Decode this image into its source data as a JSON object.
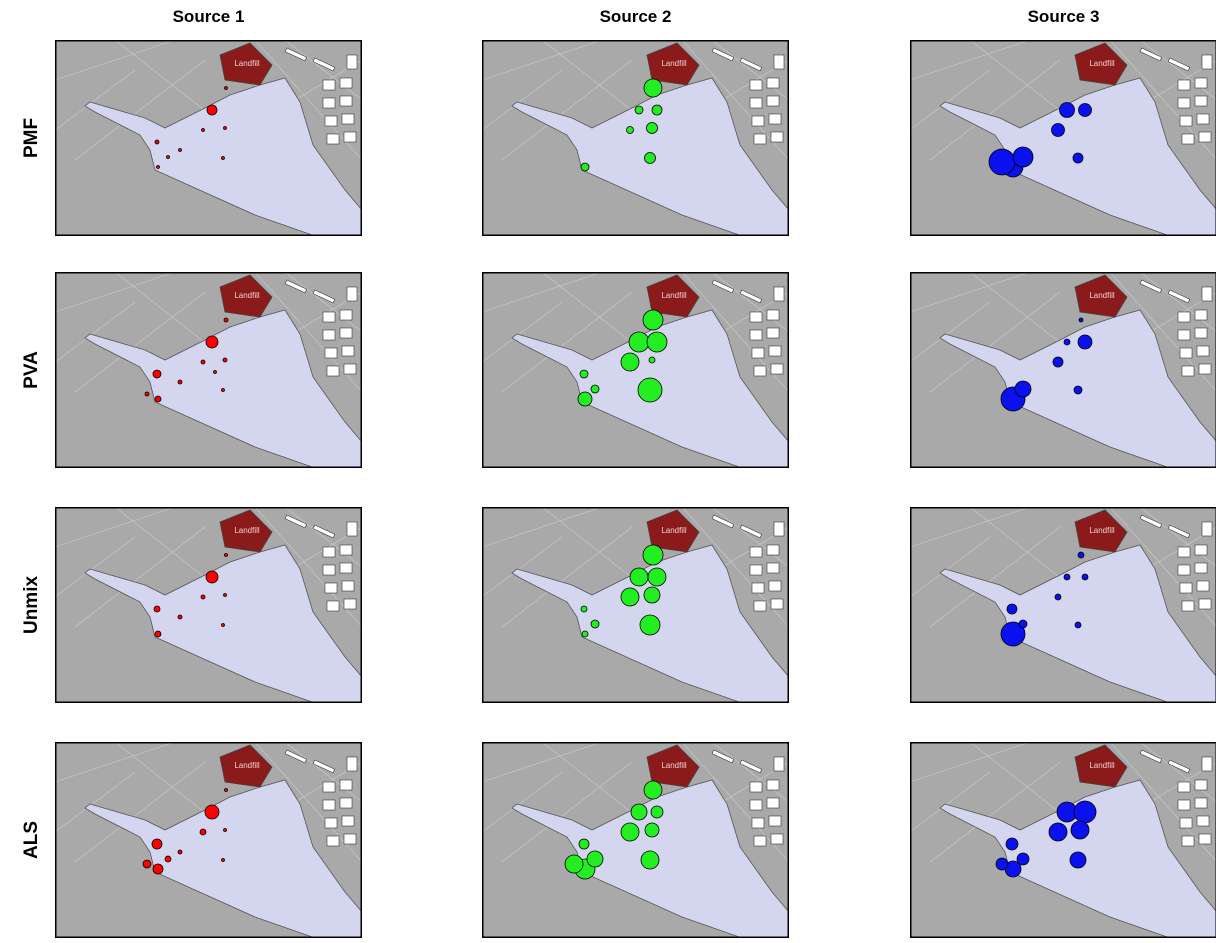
{
  "columns": [
    {
      "title": "Source 1",
      "color": "#ff0000"
    },
    {
      "title": "Source 2",
      "color": "#22ee22"
    },
    {
      "title": "Source 3",
      "color": "#0a10ee"
    }
  ],
  "rows": [
    {
      "label": "PMF",
      "sizes": [
        [
          1.5,
          0,
          1.5,
          2,
          1.5,
          5,
          1.5,
          0,
          1.5,
          1.5,
          1.5,
          0
        ],
        [
          4,
          0,
          0,
          0,
          3.5,
          4,
          9,
          5,
          5.5,
          5.5,
          0,
          0
        ],
        [
          10,
          13,
          10,
          0,
          6.5,
          7.5,
          0,
          6.5,
          0,
          5,
          0,
          0
        ]
      ]
    },
    {
      "label": "PVA",
      "sizes": [
        [
          3,
          2,
          0,
          4,
          2,
          6,
          2,
          0,
          2,
          1.5,
          2,
          1.5
        ],
        [
          7,
          0,
          4,
          4,
          9,
          10,
          10,
          10,
          3,
          12,
          0,
          0
        ],
        [
          12,
          0,
          8,
          0,
          5,
          3,
          2,
          7,
          0,
          4,
          0,
          0
        ]
      ]
    },
    {
      "label": "Unmix",
      "sizes": [
        [
          3,
          0,
          0,
          3,
          2,
          6,
          1.5,
          0,
          1.5,
          1.5,
          2,
          0
        ],
        [
          3,
          0,
          4,
          3,
          9,
          9,
          10,
          9,
          8,
          10,
          0,
          0
        ],
        [
          12,
          0,
          4,
          5,
          3,
          3,
          3,
          3,
          0,
          3,
          0,
          0
        ]
      ]
    },
    {
      "label": "ALS",
      "sizes": [
        [
          5,
          4,
          3,
          5,
          3,
          7,
          1.5,
          0,
          1.5,
          1.5,
          2,
          0
        ],
        [
          10,
          9,
          8,
          5,
          9,
          8,
          9,
          6,
          7,
          9,
          0,
          0
        ],
        [
          8,
          6,
          6,
          6,
          9,
          10,
          0,
          11,
          9,
          8,
          0,
          0
        ]
      ]
    }
  ],
  "landfill_label": "Landfill"
}
